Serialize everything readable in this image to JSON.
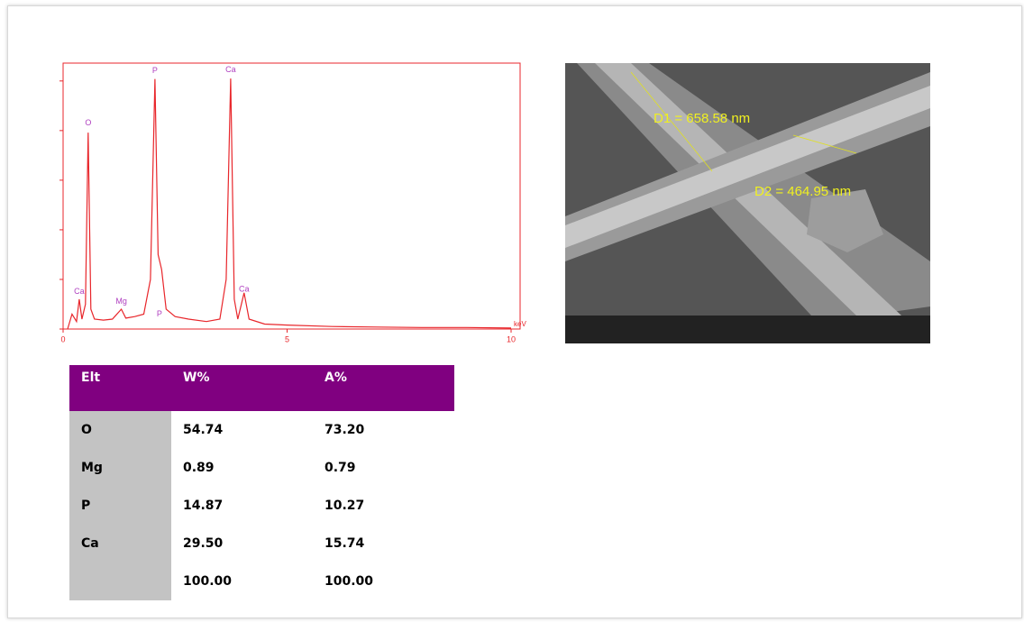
{
  "chart_data": {
    "type": "line",
    "color": "#e8262b",
    "x": [
      0.1,
      0.2,
      0.3,
      0.36,
      0.42,
      0.5,
      0.56,
      0.62,
      0.7,
      0.9,
      1.1,
      1.3,
      1.4,
      1.6,
      1.8,
      1.95,
      2.05,
      2.12,
      2.2,
      2.3,
      2.5,
      2.8,
      3.2,
      3.5,
      3.64,
      3.74,
      3.82,
      3.9,
      4.04,
      4.15,
      4.5,
      5,
      6,
      7,
      8,
      9,
      10
    ],
    "y": [
      0,
      0.3,
      0.15,
      0.6,
      0.2,
      0.5,
      3.96,
      0.4,
      0.2,
      0.18,
      0.2,
      0.4,
      0.22,
      0.25,
      0.3,
      1.0,
      5.04,
      1.5,
      1.2,
      0.4,
      0.25,
      0.2,
      0.15,
      0.2,
      1.0,
      5.05,
      0.6,
      0.2,
      0.73,
      0.2,
      0.1,
      0.08,
      0.05,
      0.04,
      0.03,
      0.03,
      0.02
    ],
    "xlim": [
      0,
      10
    ],
    "xticks": [
      0,
      5,
      10
    ],
    "xlabel": "keV",
    "ylim": [
      0,
      5.36
    ],
    "yticks": [
      0,
      1,
      2,
      3,
      4,
      5
    ],
    "annotations": [
      {
        "text": "Ca",
        "x": 0.36,
        "y": 0.75
      },
      {
        "text": "O",
        "x": 0.56,
        "y": 4.15
      },
      {
        "text": "Mg",
        "x": 1.3,
        "y": 0.55
      },
      {
        "text": "P",
        "x": 2.05,
        "y": 5.2
      },
      {
        "text": "P",
        "x": 2.15,
        "y": 0.3
      },
      {
        "text": "Ca",
        "x": 3.74,
        "y": 5.22
      },
      {
        "text": "Ca",
        "x": 4.04,
        "y": 0.8
      }
    ]
  },
  "image": {
    "labels": [
      "D1 = 658.58 nm",
      "D2 = 464.95 nm"
    ]
  },
  "table": {
    "header": [
      "Elt",
      "W%",
      "A%"
    ],
    "rows": [
      [
        "O",
        "54.74",
        "73.20"
      ],
      [
        "Mg",
        "0.89",
        "0.79"
      ],
      [
        "P",
        "14.87",
        "10.27"
      ],
      [
        "Ca",
        "29.50",
        "15.74"
      ],
      [
        null,
        "100.00",
        "100.00"
      ]
    ]
  }
}
